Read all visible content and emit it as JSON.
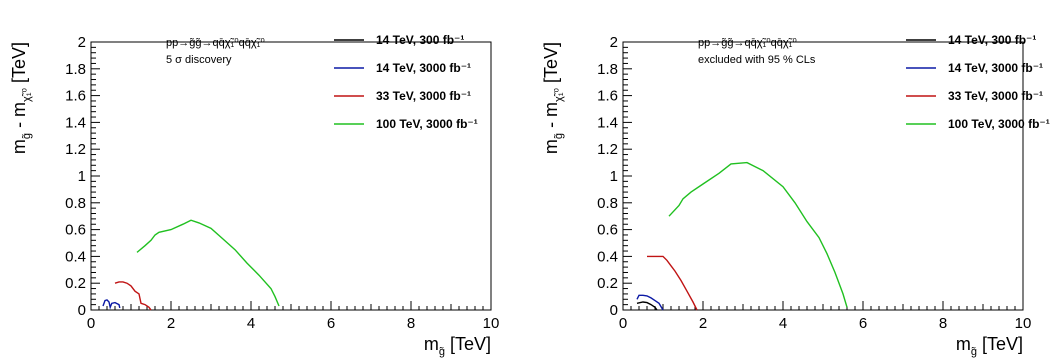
{
  "chart_data": [
    {
      "type": "line",
      "xlabel_main": "m",
      "xlabel_sub": "g̃",
      "xlabel_unit": " [TeV]",
      "ylabel_main": "m",
      "ylabel_sub1": "g̃",
      "ylabel_mid": " - m",
      "ylabel_sub2": "χ̃₁⁰",
      "ylabel_unit": " [TeV]",
      "xlim": [
        0,
        10
      ],
      "ylim": [
        0,
        2
      ],
      "xticks": [
        "0",
        "2",
        "4",
        "6",
        "8",
        "10"
      ],
      "yticks": [
        "0",
        "0.2",
        "0.4",
        "0.6",
        "0.8",
        "1",
        "1.2",
        "1.4",
        "1.6",
        "1.8",
        "2"
      ],
      "process": "pp→g̃g̃→qq̄χ̃₁⁰qq̄χ̃₁⁰",
      "note": "5 σ discovery",
      "legend_position": "top-right",
      "series": [
        {
          "name": "14 TeV, 300 fb⁻¹",
          "color": "#000000",
          "points": []
        },
        {
          "name": "14 TeV, 3000 fb⁻¹",
          "color": "#0c1aa5",
          "points": [
            [
              0.3,
              0.03
            ],
            [
              0.35,
              0.07
            ],
            [
              0.4,
              0.075
            ],
            [
              0.45,
              0.06
            ],
            [
              0.48,
              0.02
            ],
            [
              0.52,
              0.05
            ],
            [
              0.6,
              0.055
            ],
            [
              0.7,
              0.04
            ],
            [
              0.72,
              0.015
            ]
          ]
        },
        {
          "name": "33 TeV, 3000 fb⁻¹",
          "color": "#c01414",
          "points": [
            [
              0.6,
              0.2
            ],
            [
              0.7,
              0.21
            ],
            [
              0.8,
              0.21
            ],
            [
              0.9,
              0.2
            ],
            [
              1.0,
              0.18
            ],
            [
              1.1,
              0.14
            ],
            [
              1.2,
              0.12
            ],
            [
              1.25,
              0.05
            ],
            [
              1.35,
              0.04
            ],
            [
              1.45,
              0.02
            ],
            [
              1.5,
              0.0
            ]
          ]
        },
        {
          "name": "100 TeV, 3000 fb⁻¹",
          "color": "#20c020",
          "points": [
            [
              1.15,
              0.43
            ],
            [
              1.35,
              0.48
            ],
            [
              1.5,
              0.52
            ],
            [
              1.6,
              0.56
            ],
            [
              1.7,
              0.58
            ],
            [
              2.0,
              0.6
            ],
            [
              2.3,
              0.64
            ],
            [
              2.5,
              0.67
            ],
            [
              2.7,
              0.65
            ],
            [
              3.0,
              0.61
            ],
            [
              3.3,
              0.53
            ],
            [
              3.6,
              0.45
            ],
            [
              3.9,
              0.35
            ],
            [
              4.2,
              0.26
            ],
            [
              4.5,
              0.16
            ],
            [
              4.6,
              0.1
            ],
            [
              4.7,
              0.03
            ]
          ]
        }
      ]
    },
    {
      "type": "line",
      "xlabel_main": "m",
      "xlabel_sub": "g̃",
      "xlabel_unit": " [TeV]",
      "ylabel_main": "m",
      "ylabel_sub1": "g̃",
      "ylabel_mid": " - m",
      "ylabel_sub2": "χ̃₁⁰",
      "ylabel_unit": " [TeV]",
      "xlim": [
        0,
        10
      ],
      "ylim": [
        0,
        2
      ],
      "xticks": [
        "0",
        "2",
        "4",
        "6",
        "8",
        "10"
      ],
      "yticks": [
        "0",
        "0.2",
        "0.4",
        "0.6",
        "0.8",
        "1",
        "1.2",
        "1.4",
        "1.6",
        "1.8",
        "2"
      ],
      "process": "pp→g̃g̃→qq̄χ̃₁⁰qq̄χ̃₁⁰",
      "note": "excluded with 95 % CLs",
      "legend_position": "top-right",
      "series": [
        {
          "name": "14 TeV, 300 fb⁻¹",
          "color": "#000000",
          "points": [
            [
              0.35,
              0.05
            ],
            [
              0.5,
              0.06
            ],
            [
              0.6,
              0.055
            ],
            [
              0.7,
              0.04
            ],
            [
              0.8,
              0.02
            ],
            [
              0.85,
              0.0
            ]
          ]
        },
        {
          "name": "14 TeV, 3000 fb⁻¹",
          "color": "#0c1aa5",
          "points": [
            [
              0.35,
              0.08
            ],
            [
              0.4,
              0.11
            ],
            [
              0.5,
              0.11
            ],
            [
              0.6,
              0.105
            ],
            [
              0.7,
              0.09
            ],
            [
              0.8,
              0.07
            ],
            [
              0.9,
              0.05
            ],
            [
              1.0,
              0.0
            ]
          ]
        },
        {
          "name": "33 TeV, 3000 fb⁻¹",
          "color": "#c01414",
          "points": [
            [
              0.6,
              0.4
            ],
            [
              0.8,
              0.4
            ],
            [
              1.0,
              0.4
            ],
            [
              1.1,
              0.37
            ],
            [
              1.2,
              0.33
            ],
            [
              1.3,
              0.29
            ],
            [
              1.45,
              0.22
            ],
            [
              1.6,
              0.14
            ],
            [
              1.75,
              0.06
            ],
            [
              1.85,
              0.0
            ]
          ]
        },
        {
          "name": "100 TeV, 3000 fb⁻¹",
          "color": "#20c020",
          "points": [
            [
              1.15,
              0.7
            ],
            [
              1.4,
              0.78
            ],
            [
              1.5,
              0.83
            ],
            [
              1.7,
              0.88
            ],
            [
              2.0,
              0.94
            ],
            [
              2.4,
              1.02
            ],
            [
              2.7,
              1.09
            ],
            [
              3.1,
              1.1
            ],
            [
              3.5,
              1.04
            ],
            [
              4.0,
              0.92
            ],
            [
              4.3,
              0.8
            ],
            [
              4.6,
              0.66
            ],
            [
              4.9,
              0.54
            ],
            [
              5.1,
              0.42
            ],
            [
              5.3,
              0.28
            ],
            [
              5.5,
              0.12
            ],
            [
              5.6,
              0.02
            ]
          ]
        }
      ]
    }
  ]
}
